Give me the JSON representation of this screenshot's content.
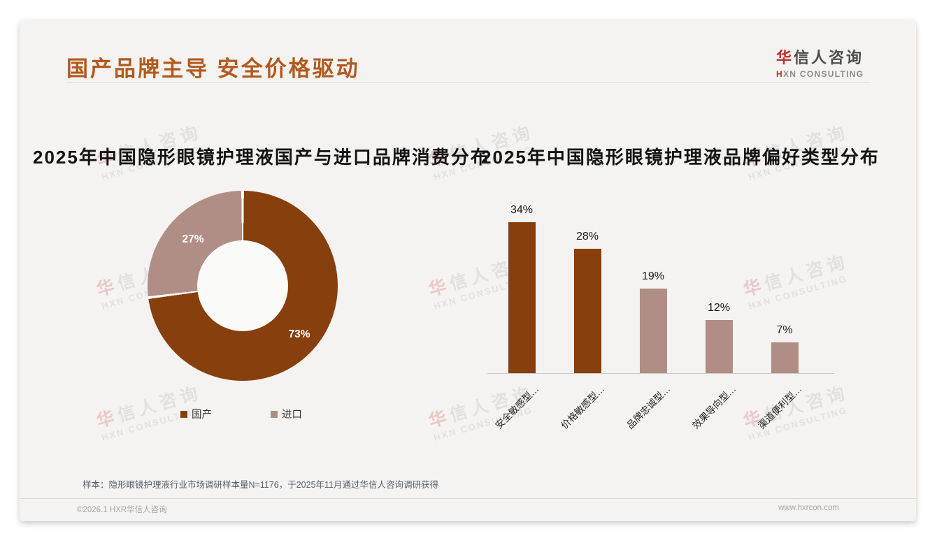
{
  "header": {
    "title": "国产品牌主导 安全价格驱动"
  },
  "logo": {
    "cn_accent": "华",
    "cn_rest": "信人咨询",
    "en_accent": "H",
    "en_rest": "XN CONSULTING"
  },
  "watermark": {
    "cn_accent": "华",
    "cn_rest": "信人咨询",
    "en": "HXN CONSULTING"
  },
  "colors": {
    "title_orange": "#b2591d",
    "brand_brown": "#873f0d",
    "mauve": "#b08e86",
    "logo_red": "#bf3028",
    "card_bg": "#f4f3f1"
  },
  "chart_data": [
    {
      "type": "pie",
      "subtype": "donut",
      "title": "2025年中国隐形眼镜护理液国产与进口品牌消费分布",
      "categories": [
        "国产",
        "进口"
      ],
      "values": [
        73,
        27
      ],
      "labels": [
        "73%",
        "27%"
      ],
      "colors": [
        "#873f0d",
        "#b08e86"
      ],
      "start_angle_deg": 0,
      "direction": "clockwise",
      "legend_position": "bottom"
    },
    {
      "type": "bar",
      "title": "2025年中国隐形眼镜护理液品牌偏好类型分布",
      "categories": [
        "安全敏感型…",
        "价格敏感型…",
        "品牌忠诚型…",
        "效果导向型…",
        "渠道便利型…"
      ],
      "values": [
        34,
        28,
        19,
        12,
        7
      ],
      "value_labels": [
        "34%",
        "28%",
        "19%",
        "12%",
        "7%"
      ],
      "colors": [
        "#873f0d",
        "#873f0d",
        "#b08e86",
        "#b08e86",
        "#b08e86"
      ],
      "xlabel": "",
      "ylabel": "",
      "ylim": [
        0,
        38
      ],
      "grid": false,
      "value_unit": "%"
    }
  ],
  "footnote": {
    "sample_note": "样本：隐形眼镜护理液行业市场调研样本量N=1176，于2025年11月通过华信人咨询调研获得"
  },
  "footer": {
    "copyright": "©2026.1 HXR华信人咨询",
    "website": "www.hxrcon.com"
  }
}
